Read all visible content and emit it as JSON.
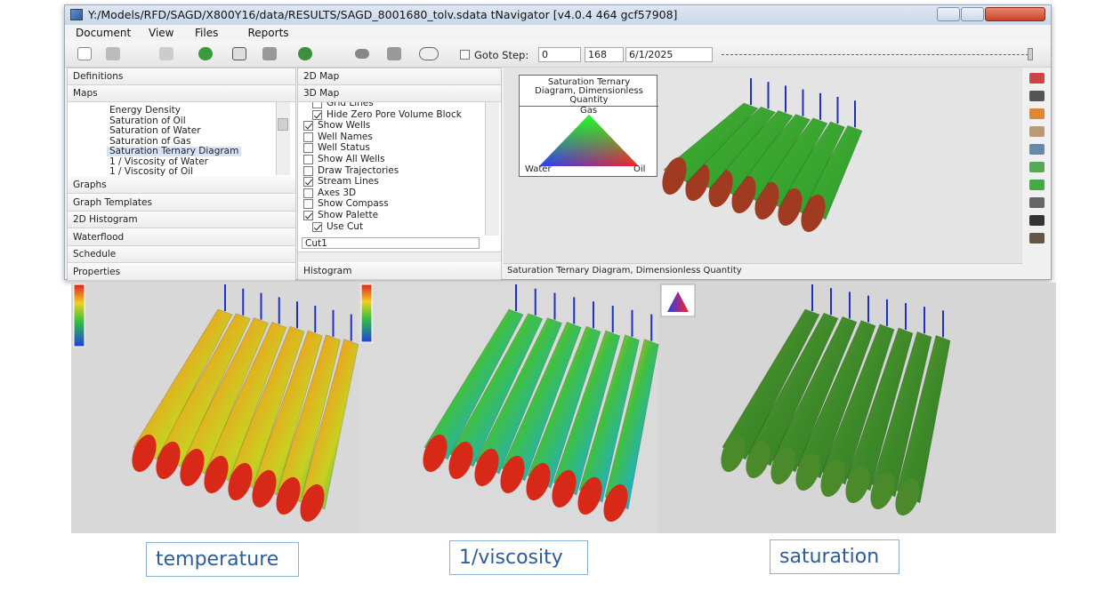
{
  "window": {
    "title": "Y:/Models/RFD/SAGD/X800Y16/data/RESULTS/SAGD_8001680_tolv.sdata   tNavigator [v4.0.4 464 gcf57908]",
    "menu": [
      "Document",
      "View",
      "Files",
      "Reports"
    ],
    "toolbar": {
      "goto_label": "Goto Step:",
      "step_from": 0,
      "step_to": 168,
      "date": "6/1/2025"
    }
  },
  "left_panel": {
    "sections_top": [
      "Definitions",
      "Maps"
    ],
    "map_list": [
      "Energy Density",
      "Saturation of Oil",
      "Saturation of Water",
      "Saturation of Gas",
      "Saturation Ternary Diagram",
      "1 / Viscosity of Water",
      "1 / Viscosity of Oil"
    ],
    "selected": 4,
    "sections_bottom": [
      "Graphs",
      "Graph Templates",
      "2D Histogram",
      "Waterflood",
      "Schedule",
      "Properties"
    ]
  },
  "middle_panel": {
    "tabs": [
      "2D Map",
      "3D Map"
    ],
    "options": [
      {
        "label": "Grid Lines",
        "checked": false
      },
      {
        "label": "Hide Zero Pore Volume Block",
        "checked": true
      },
      {
        "label": "Show Wells",
        "checked": true
      },
      {
        "label": "Well Names",
        "checked": false
      },
      {
        "label": "Well Status",
        "checked": false
      },
      {
        "label": "Show All Wells",
        "checked": false
      },
      {
        "label": "Draw Trajectories",
        "checked": false
      },
      {
        "label": "Stream Lines",
        "checked": true
      },
      {
        "label": "Axes 3D",
        "checked": false
      },
      {
        "label": "Show Compass",
        "checked": false
      },
      {
        "label": "Show Palette",
        "checked": true
      },
      {
        "label": "Use Cut",
        "checked": true
      }
    ],
    "cut": "Cut1",
    "footer": "Histogram"
  },
  "view": {
    "legend_title": "Saturation Ternary Diagram, Dimensionless Quantity",
    "legend_labels": {
      "top": "Gas",
      "left": "Water",
      "right": "Oil"
    },
    "status": "Saturation Ternary Diagram, Dimensionless Quantity"
  },
  "captions": [
    "temperature",
    "1/viscosity",
    "saturation"
  ]
}
